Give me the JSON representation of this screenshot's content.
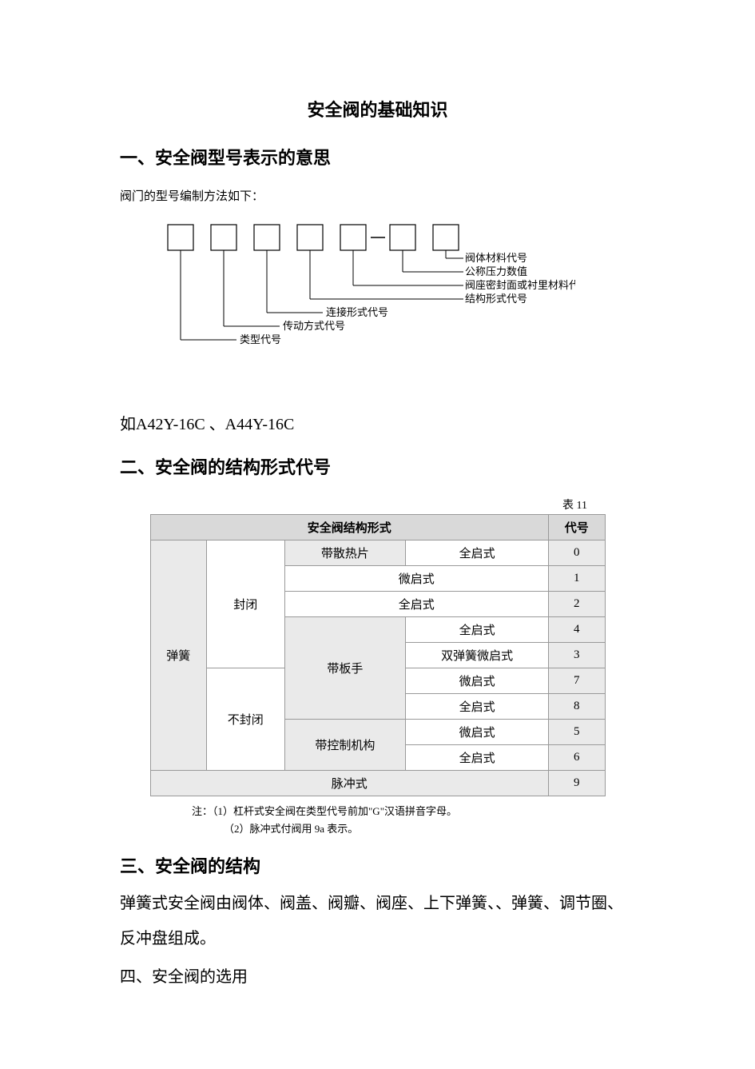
{
  "title": "安全阀的基础知识",
  "section1": {
    "heading": "一、安全阀型号表示的意思",
    "intro": "阀门的型号编制方法如下：",
    "diagram": {
      "box_size": 32,
      "box_gap": 22,
      "box_count": 7,
      "box_stroke": "#000000",
      "line_stroke": "#000000",
      "labels": [
        "阀体材料代号",
        "公称压力数值",
        "阀座密封面或衬里材料代号",
        "结构形式代号",
        "连接形式代号",
        "传动方式代号",
        "类型代号"
      ],
      "label_fontsize": 13
    },
    "example": "如A42Y-16C 、A44Y-16C"
  },
  "section2": {
    "heading": "二、安全阀的结构形式代号",
    "table_caption": "表 11",
    "header_left": "安全阀结构形式",
    "header_right": "代号",
    "rows": [
      {
        "c1": "弹簧",
        "c2": "封闭",
        "c3": "带散热片",
        "c4": "全启式",
        "code": "0",
        "r1span": 9,
        "r2span": 4
      },
      {
        "c3": "",
        "c4": "微启式",
        "code": "1",
        "cspan34": true
      },
      {
        "c3": "",
        "c4": "全启式",
        "code": "2",
        "cspan34": true
      },
      {
        "c3": "带板手",
        "c4": "全启式",
        "code": "4",
        "r3span": 4,
        "new_c2": false
      },
      {
        "c4": "双弹簧微启式",
        "code": "3"
      },
      {
        "c2": "不封闭",
        "c4": "微启式",
        "code": "7",
        "new_c2": true,
        "r2span": 4
      },
      {
        "c4": "全启式",
        "code": "8"
      },
      {
        "c3": "带控制机构",
        "c4": "微启式",
        "code": "5",
        "r3span": 2
      },
      {
        "c4": "全启式",
        "code": "6"
      },
      {
        "pulse": "脉冲式",
        "code": "9"
      }
    ],
    "notes": [
      "注：（1）杠杆式安全阀在类型代号前加\"G\"汉语拼音字母。",
      "（2）脉冲式付阀用 9a 表示。"
    ]
  },
  "section3": {
    "heading": "三、安全阀的结构",
    "body": "弹簧式安全阀由阀体、阀盖、阀瓣、阀座、上下弹簧、、弹簧、调节圈、反冲盘组成。"
  },
  "section4": {
    "heading": "四、安全阀的选用"
  }
}
